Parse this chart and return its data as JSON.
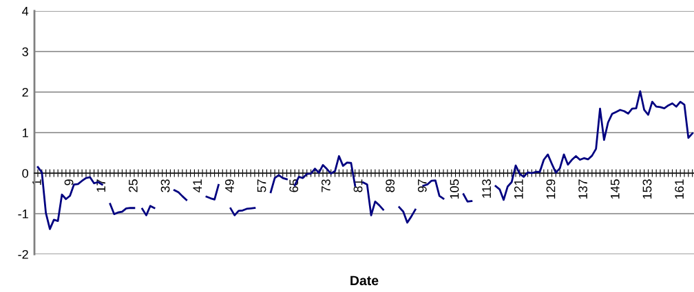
{
  "chart_data": {
    "type": "line",
    "xlabel": "Date",
    "categories": [
      "1",
      null,
      null,
      null,
      null,
      null,
      null,
      null,
      "9",
      null,
      null,
      null,
      null,
      null,
      null,
      null,
      "17",
      null,
      null,
      null,
      null,
      null,
      null,
      null,
      "25",
      null,
      null,
      null,
      null,
      null,
      null,
      null,
      "33",
      null,
      null,
      null,
      null,
      null,
      null,
      null,
      "41",
      null,
      null,
      null,
      null,
      null,
      null,
      null,
      "49",
      null,
      null,
      null,
      null,
      null,
      null,
      null,
      "57",
      null,
      null,
      null,
      null,
      null,
      null,
      null,
      "65",
      null,
      null,
      null,
      null,
      null,
      null,
      null,
      "73",
      null,
      null,
      null,
      null,
      null,
      null,
      null,
      "81",
      null,
      null,
      null,
      null,
      null,
      null,
      null,
      "89",
      null,
      null,
      null,
      null,
      null,
      null,
      null,
      "97",
      null,
      null,
      null,
      null,
      null,
      null,
      null,
      "105",
      null,
      null,
      null,
      null,
      null,
      null,
      null,
      "113",
      null,
      null,
      null,
      null,
      null,
      null,
      null,
      "121",
      null,
      null,
      null,
      null,
      null,
      null,
      null,
      "129",
      null,
      null,
      null,
      null,
      null,
      null,
      null,
      "137",
      null,
      null,
      null,
      null,
      null,
      null,
      null,
      "145",
      null,
      null,
      null,
      null,
      null,
      null,
      null,
      "153",
      null,
      null,
      null,
      null,
      null,
      null,
      null,
      "161",
      null,
      null,
      null
    ],
    "series": [
      {
        "color": "#000080",
        "values": [
          0.15,
          0.02,
          -0.98,
          -1.38,
          -1.15,
          -1.18,
          -0.53,
          -0.64,
          -0.56,
          -0.28,
          -0.27,
          -0.19,
          -0.12,
          -0.1,
          -0.25,
          -0.22,
          -0.28,
          null,
          -0.76,
          -1.01,
          -0.97,
          -0.95,
          -0.87,
          -0.86,
          -0.86,
          null,
          -0.88,
          -1.04,
          -0.81,
          -0.86,
          null,
          null,
          null,
          null,
          -0.42,
          -0.47,
          -0.57,
          -0.66,
          null,
          null,
          null,
          null,
          -0.58,
          -0.62,
          -0.65,
          -0.29,
          null,
          null,
          -0.87,
          -1.04,
          -0.93,
          -0.92,
          -0.88,
          -0.87,
          -0.86,
          null,
          null,
          null,
          -0.47,
          -0.12,
          -0.05,
          -0.12,
          -0.15,
          null,
          -0.3,
          -0.09,
          -0.12,
          -0.02,
          -0.01,
          0.11,
          0.01,
          0.2,
          0.1,
          -0.01,
          0.05,
          0.42,
          0.18,
          0.26,
          0.25,
          -0.31,
          null,
          -0.23,
          -0.28,
          -1.04,
          -0.7,
          -0.79,
          -0.9,
          null,
          null,
          null,
          -0.84,
          -0.95,
          -1.22,
          -1.07,
          -0.9,
          null,
          -0.31,
          -0.28,
          -0.19,
          -0.18,
          -0.56,
          -0.63,
          null,
          null,
          null,
          null,
          -0.52,
          -0.7,
          -0.69,
          null,
          null,
          null,
          null,
          null,
          -0.32,
          -0.4,
          -0.66,
          -0.33,
          -0.22,
          0.19,
          -0.02,
          -0.09,
          0.02,
          0.0,
          0.03,
          0.03,
          0.33,
          0.46,
          0.23,
          0.01,
          0.12,
          0.46,
          0.21,
          0.33,
          0.42,
          0.33,
          0.37,
          0.34,
          0.43,
          0.6,
          1.59,
          0.82,
          1.25,
          1.46,
          1.51,
          1.56,
          1.53,
          1.47,
          1.59,
          1.6,
          2.02,
          1.56,
          1.44,
          1.76,
          1.64,
          1.63,
          1.6,
          1.67,
          1.72,
          1.64,
          1.76,
          1.69,
          0.87,
          0.98
        ]
      }
    ],
    "ylim": [
      -2,
      4
    ],
    "yticks": [
      -2,
      -1,
      0,
      1,
      2,
      3,
      4
    ],
    "grid": "y"
  }
}
